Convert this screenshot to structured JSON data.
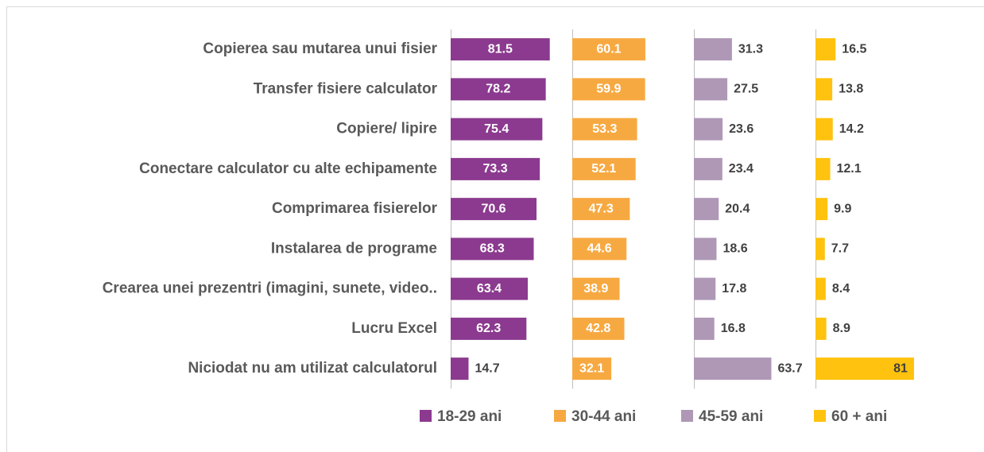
{
  "chart_data": {
    "type": "bar",
    "orientation": "horizontal",
    "layout": "small-multiples",
    "categories": [
      "Copierea sau mutarea unui fisier",
      "Transfer fisiere calculator",
      "Copiere/ lipire",
      "Conectare calculator cu alte echipamente",
      "Comprimarea fisierelor",
      "Instalarea de programe",
      "Crearea unei prezentri (imagini, sunete, video..",
      "Lucru Excel",
      "Niciodat nu am utilizat calculatorul"
    ],
    "xlim": [
      0,
      100
    ],
    "legend": "bottom",
    "series": [
      {
        "name": "18-29 ani",
        "color": "#8b3a8f",
        "values": [
          81.5,
          78.2,
          75.4,
          73.3,
          70.6,
          68.3,
          63.4,
          62.3,
          14.7
        ]
      },
      {
        "name": "30-44 ani",
        "color": "#f7a941",
        "values": [
          60.1,
          59.9,
          53.3,
          52.1,
          47.3,
          44.6,
          38.9,
          42.8,
          32.1
        ]
      },
      {
        "name": "45-59 ani",
        "color": "#ae98b6",
        "values": [
          31.3,
          27.5,
          23.6,
          23.4,
          20.4,
          18.6,
          17.8,
          16.8,
          63.7
        ]
      },
      {
        "name": "60 + ani",
        "color": "#ffc20e",
        "values": [
          16.5,
          13.8,
          14.2,
          12.1,
          9.9,
          7.7,
          8.4,
          8.9,
          81
        ]
      }
    ]
  }
}
